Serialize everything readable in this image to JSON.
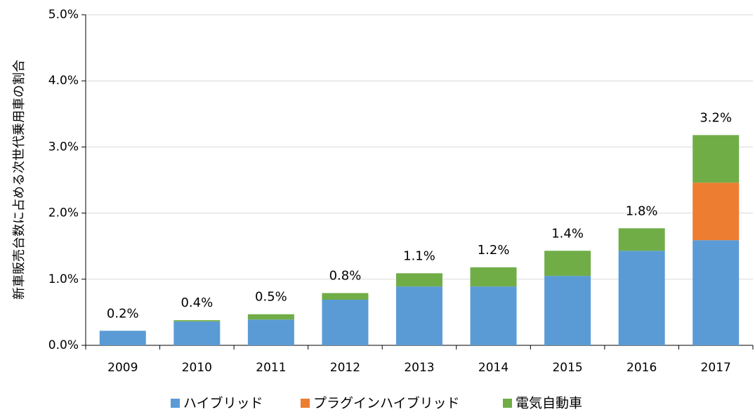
{
  "chart_data": {
    "type": "stacked_bar",
    "y_label": "新車販売台数に占める次世代乗用車の割合",
    "categories": [
      "2009",
      "2010",
      "2011",
      "2012",
      "2013",
      "2014",
      "2015",
      "2016",
      "2017"
    ],
    "series": [
      {
        "name": "ハイブリッド",
        "color": "#5b9bd5",
        "values": [
          0.22,
          0.36,
          0.39,
          0.69,
          0.89,
          0.89,
          1.05,
          1.43,
          1.59
        ]
      },
      {
        "name": "プラグインハイブリッド",
        "color": "#ed7d31",
        "values": [
          0,
          0,
          0,
          0,
          0,
          0,
          0,
          0,
          0.87
        ]
      },
      {
        "name": "電気自動車",
        "color": "#70ad47",
        "values": [
          0,
          0.02,
          0.08,
          0.1,
          0.2,
          0.29,
          0.38,
          0.34,
          0.72
        ]
      }
    ],
    "total_labels": [
      "0.2%",
      "0.4%",
      "0.5%",
      "0.8%",
      "1.1%",
      "1.2%",
      "1.4%",
      "1.8%",
      "3.2%"
    ],
    "ylim": [
      0,
      5
    ],
    "yticks": [
      {
        "value": 0,
        "label": "0.0%"
      },
      {
        "value": 1,
        "label": "1.0%"
      },
      {
        "value": 2,
        "label": "2.0%"
      },
      {
        "value": 3,
        "label": "3.0%"
      },
      {
        "value": 4,
        "label": "4.0%"
      },
      {
        "value": 5,
        "label": "5.0%"
      }
    ],
    "grid": true,
    "legend": "bottom"
  }
}
